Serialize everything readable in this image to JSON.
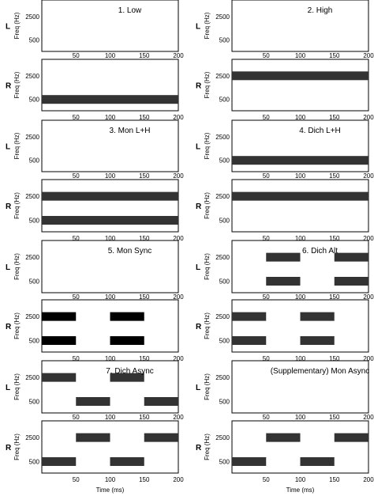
{
  "chart_data": {
    "type": "timeline",
    "x_range": [
      0,
      200
    ],
    "x_ticks": [
      50,
      100,
      150,
      200
    ],
    "y_ticks": [
      2500,
      500
    ],
    "ylabel": "Freq (Hz)",
    "xlabel": "Time (ms)",
    "ear_labels": [
      "L",
      "R"
    ],
    "bar_colors": {
      "grey": "#333333",
      "black": "#000000"
    },
    "conditions": [
      {
        "title": "1. Low",
        "color": "grey",
        "L": [],
        "R": [
          {
            "freq": 500,
            "start": 0,
            "end": 200
          }
        ]
      },
      {
        "title": "2. High",
        "color": "grey",
        "L": [],
        "R": [
          {
            "freq": 2500,
            "start": 0,
            "end": 200
          }
        ]
      },
      {
        "title": "3. Mon L+H",
        "color": "grey",
        "L": [],
        "R": [
          {
            "freq": 2500,
            "start": 0,
            "end": 200
          },
          {
            "freq": 500,
            "start": 0,
            "end": 200
          }
        ]
      },
      {
        "title": "4. Dich L+H",
        "color": "grey",
        "L": [
          {
            "freq": 500,
            "start": 0,
            "end": 200
          }
        ],
        "R": [
          {
            "freq": 2500,
            "start": 0,
            "end": 200
          }
        ]
      },
      {
        "title": "5. Mon Sync",
        "color": "black",
        "L": [],
        "R": [
          {
            "freq": 2500,
            "start": 0,
            "end": 50
          },
          {
            "freq": 2500,
            "start": 100,
            "end": 150
          },
          {
            "freq": 500,
            "start": 0,
            "end": 50
          },
          {
            "freq": 500,
            "start": 100,
            "end": 150
          }
        ]
      },
      {
        "title": "6. Dich Alt",
        "color": "grey",
        "L": [
          {
            "freq": 2500,
            "start": 50,
            "end": 100
          },
          {
            "freq": 2500,
            "start": 150,
            "end": 200
          },
          {
            "freq": 500,
            "start": 50,
            "end": 100
          },
          {
            "freq": 500,
            "start": 150,
            "end": 200
          }
        ],
        "R": [
          {
            "freq": 2500,
            "start": 0,
            "end": 50
          },
          {
            "freq": 2500,
            "start": 100,
            "end": 150
          },
          {
            "freq": 500,
            "start": 0,
            "end": 50
          },
          {
            "freq": 500,
            "start": 100,
            "end": 150
          }
        ]
      },
      {
        "title": "7. Dich Async",
        "color": "grey",
        "L": [
          {
            "freq": 2500,
            "start": 0,
            "end": 50
          },
          {
            "freq": 2500,
            "start": 100,
            "end": 150
          },
          {
            "freq": 500,
            "start": 50,
            "end": 100
          },
          {
            "freq": 500,
            "start": 150,
            "end": 200
          }
        ],
        "R": [
          {
            "freq": 2500,
            "start": 50,
            "end": 100
          },
          {
            "freq": 2500,
            "start": 150,
            "end": 200
          },
          {
            "freq": 500,
            "start": 0,
            "end": 50
          },
          {
            "freq": 500,
            "start": 100,
            "end": 150
          }
        ]
      },
      {
        "title": "(Supplementary) Mon Async",
        "color": "grey",
        "L": [],
        "R": [
          {
            "freq": 2500,
            "start": 50,
            "end": 100
          },
          {
            "freq": 2500,
            "start": 150,
            "end": 200
          },
          {
            "freq": 500,
            "start": 0,
            "end": 50
          },
          {
            "freq": 500,
            "start": 100,
            "end": 150
          }
        ]
      }
    ]
  }
}
